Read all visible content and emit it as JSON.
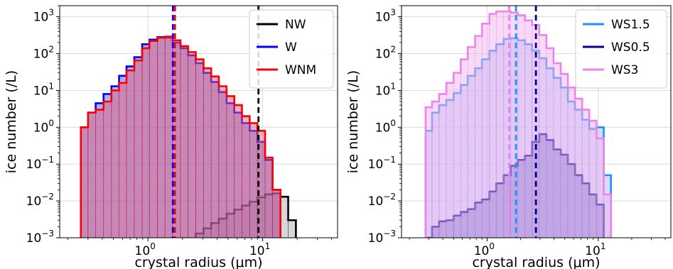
{
  "chart_data": [
    {
      "type": "histogram",
      "xlabel": "crystal radius (μm)",
      "ylabel": "ice number (/L)",
      "xscale": "log",
      "yscale": "log",
      "xlim": [
        0.17,
        45
      ],
      "ylim": [
        0.001,
        2000
      ],
      "xticks": [
        {
          "value": 1,
          "base": "10",
          "exp": "0"
        },
        {
          "value": 10,
          "base": "10",
          "exp": "1"
        }
      ],
      "yticks": [
        {
          "value": 0.001,
          "base": "10",
          "exp": "−3"
        },
        {
          "value": 0.01,
          "base": "10",
          "exp": "−2"
        },
        {
          "value": 0.1,
          "base": "10",
          "exp": "−1"
        },
        {
          "value": 1,
          "base": "10",
          "exp": "0"
        },
        {
          "value": 10,
          "base": "10",
          "exp": "1"
        },
        {
          "value": 100,
          "base": "10",
          "exp": "2"
        },
        {
          "value": 1000,
          "base": "10",
          "exp": "3"
        }
      ],
      "grid": true,
      "legend_position": "top-right",
      "bin_edges": [
        0.26,
        0.3,
        0.35,
        0.41,
        0.48,
        0.56,
        0.65,
        0.76,
        0.89,
        1.03,
        1.21,
        1.41,
        1.64,
        1.92,
        2.24,
        2.61,
        3.05,
        3.56,
        4.15,
        4.85,
        5.66,
        6.6,
        7.71,
        9.0,
        10.5,
        12.2,
        14.3,
        16.7,
        19.5
      ],
      "series": [
        {
          "name": "NW",
          "color": "#000000",
          "fill": "#b0b0b0",
          "mean_radius": 9.2,
          "values": [
            null,
            null,
            null,
            null,
            null,
            null,
            null,
            null,
            null,
            null,
            null,
            null,
            null,
            null,
            0.0009,
            0.0013,
            0.0018,
            0.0025,
            0.0033,
            0.0045,
            0.0058,
            0.0075,
            0.0095,
            0.0125,
            0.015,
            0.016,
            0.013,
            0.003
          ]
        },
        {
          "name": "W",
          "color": "#0000ff",
          "fill": "#5a66e0",
          "mean_radius": 1.65,
          "values": [
            1.0,
            2.5,
            4.5,
            8.0,
            13,
            25,
            45,
            80,
            180,
            240,
            280,
            270,
            200,
            140,
            90,
            55,
            30,
            17,
            9,
            4.5,
            2.5,
            1.3,
            0.8,
            0.4,
            0.13,
            0.02,
            null,
            null
          ]
        },
        {
          "name": "WNM",
          "color": "#ff0000",
          "fill": "#e06080",
          "mean_radius": 1.72,
          "values": [
            1.0,
            2.5,
            3.0,
            5.0,
            10,
            16,
            35,
            65,
            140,
            220,
            270,
            290,
            230,
            160,
            110,
            70,
            40,
            24,
            13,
            7,
            4.0,
            2.0,
            1.3,
            0.8,
            0.15,
            0.02,
            null,
            null
          ]
        }
      ]
    },
    {
      "type": "histogram",
      "xlabel": "crystal radius (μm)",
      "ylabel": "ice number (/L)",
      "xscale": "log",
      "yscale": "log",
      "xlim": [
        0.17,
        45
      ],
      "ylim": [
        0.001,
        2000
      ],
      "xticks": [
        {
          "value": 1,
          "base": "10",
          "exp": "0"
        },
        {
          "value": 10,
          "base": "10",
          "exp": "1"
        }
      ],
      "yticks": [
        {
          "value": 0.001,
          "base": "10",
          "exp": "−3"
        },
        {
          "value": 0.01,
          "base": "10",
          "exp": "−2"
        },
        {
          "value": 0.1,
          "base": "10",
          "exp": "−1"
        },
        {
          "value": 1,
          "base": "10",
          "exp": "0"
        },
        {
          "value": 10,
          "base": "10",
          "exp": "1"
        },
        {
          "value": 100,
          "base": "10",
          "exp": "2"
        },
        {
          "value": 1000,
          "base": "10",
          "exp": "3"
        }
      ],
      "grid": true,
      "legend_position": "top-right",
      "bin_edges": [
        0.28,
        0.32,
        0.37,
        0.43,
        0.5,
        0.58,
        0.67,
        0.78,
        0.9,
        1.05,
        1.21,
        1.41,
        1.63,
        1.89,
        2.19,
        2.54,
        2.95,
        3.42,
        3.96,
        4.6,
        5.33,
        6.18,
        7.17,
        8.3,
        9.63,
        11.2,
        13.0
      ],
      "series": [
        {
          "name": "WS1.5",
          "color": "#1e90ff",
          "fill": "#aabdf5",
          "mean_radius": 1.82,
          "values": [
            0.8,
            2.5,
            4.0,
            5.5,
            8.5,
            14,
            25,
            40,
            70,
            120,
            180,
            250,
            260,
            230,
            180,
            120,
            75,
            40,
            22,
            12,
            5.0,
            3.0,
            1.6,
            0.9,
            1.0,
            0.05
          ]
        },
        {
          "name": "WS0.5",
          "color": "#00008b",
          "fill": "#4a55b5",
          "mean_radius": 2.75,
          "values": [
            0.001,
            0.002,
            0.0028,
            0.003,
            0.004,
            0.005,
            0.006,
            0.009,
            0.011,
            0.018,
            0.03,
            0.05,
            0.09,
            0.13,
            0.17,
            0.4,
            0.65,
            0.45,
            0.25,
            0.18,
            0.1,
            0.05,
            0.03,
            0.015,
            0.008,
            null
          ]
        },
        {
          "name": "WS3",
          "color": "#ee82ee",
          "fill": "#f2b6f0",
          "mean_radius": 1.58,
          "values": [
            3.5,
            5.0,
            8.0,
            16,
            30,
            70,
            150,
            300,
            650,
            1200,
            1400,
            1400,
            1300,
            1100,
            800,
            600,
            320,
            140,
            55,
            28,
            12,
            6,
            3.0,
            1.5,
            0.5,
            0.015
          ]
        }
      ]
    }
  ]
}
